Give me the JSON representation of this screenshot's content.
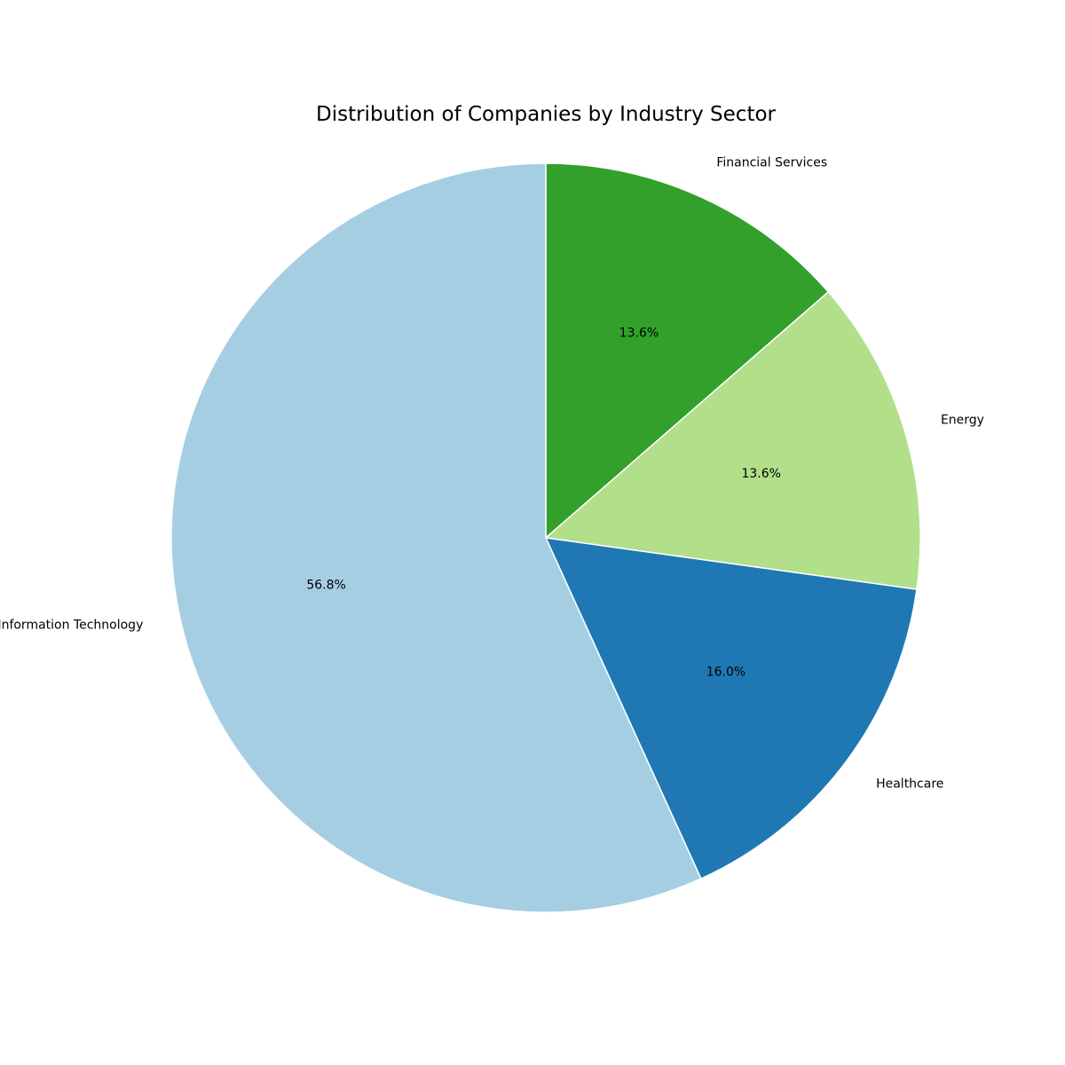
{
  "chart_data": {
    "type": "pie",
    "title": "Distribution of Companies by Industry Sector",
    "start_angle_deg": 90,
    "direction": "clockwise",
    "slices": [
      {
        "label": "Financial Services",
        "value": 13.6,
        "pct_label": "13.6%",
        "color": "#33a02c"
      },
      {
        "label": "Energy",
        "value": 13.6,
        "pct_label": "13.6%",
        "color": "#b2df8a"
      },
      {
        "label": "Healthcare",
        "value": 16.0,
        "pct_label": "16.0%",
        "color": "#1f78b4"
      },
      {
        "label": "Information Technology",
        "value": 56.8,
        "pct_label": "56.8%",
        "color": "#a6cee3"
      }
    ],
    "wedge_edge_color": "#ffffff",
    "legend": "none"
  }
}
